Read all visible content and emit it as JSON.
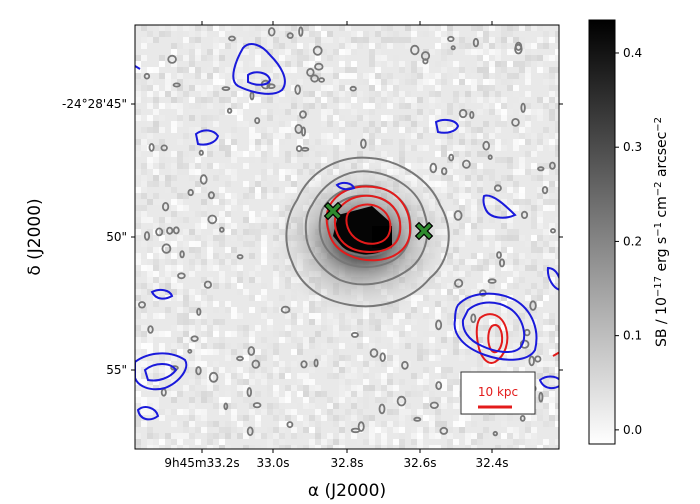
{
  "chart_data": {
    "type": "heatmap",
    "xlabel": "α (J2000)",
    "ylabel": "δ (J2000)",
    "x_ticks": [
      "9h45m33.2s",
      "33.0s",
      "32.8s",
      "32.6s",
      "32.4s"
    ],
    "y_ticks": [
      "-24°28'45\"",
      "50\"",
      "55\""
    ],
    "colorbar": {
      "label": "SB / 10",
      "label_exp1": "−17",
      "label_mid1": " erg s",
      "label_exp2": "−1",
      "label_mid2": " cm",
      "label_exp3": "−2",
      "label_mid3": " arcsec",
      "label_exp4": "−2",
      "range": [
        -0.015,
        0.435
      ],
      "ticks": [
        "0.4",
        "0.3",
        "0.2",
        "0.1",
        "0.0"
      ],
      "tick_values": [
        0.4,
        0.3,
        0.2,
        0.1,
        0.0
      ],
      "colormap": "gray_r"
    },
    "source_peak_sb": 0.43,
    "scalebar_label": "10 kpc",
    "markers": [
      {
        "symbol": "X",
        "color": "#2e8b2e"
      },
      {
        "symbol": "X",
        "color": "#2e8b2e"
      }
    ],
    "contour_colors": {
      "image": "#777777",
      "red": "#e31b1b",
      "blue": "#1a1adb"
    }
  }
}
